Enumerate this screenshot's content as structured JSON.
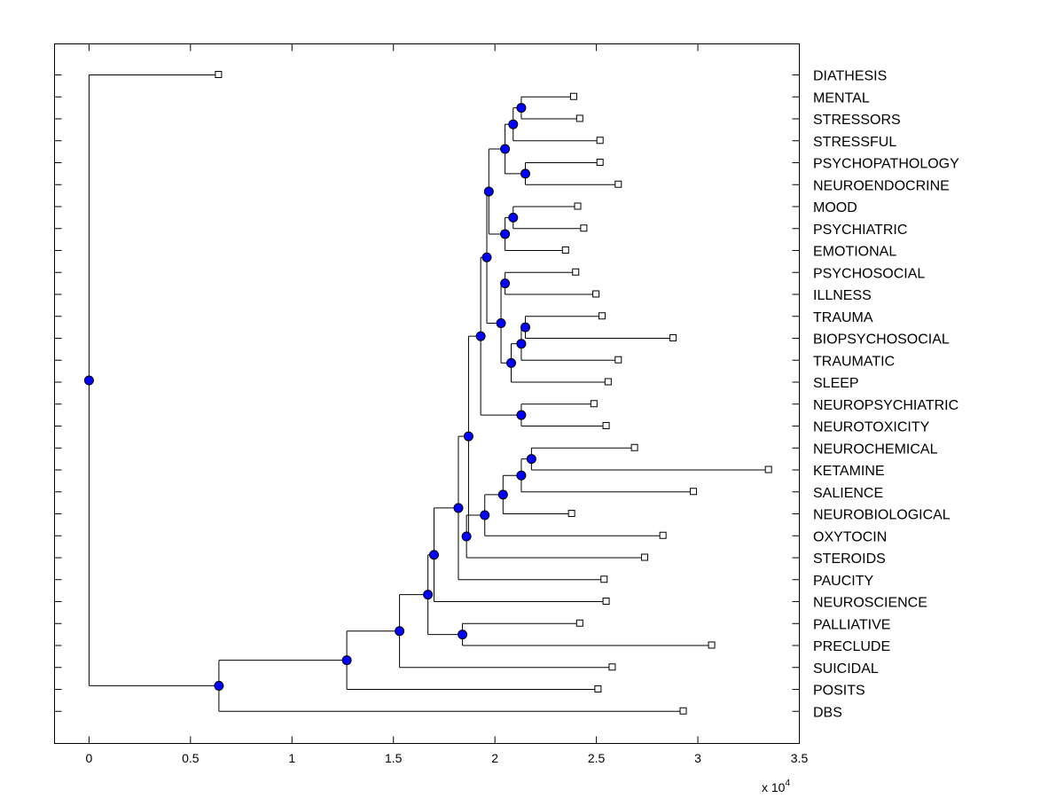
{
  "chart_data": {
    "type": "dendrogram",
    "title": "",
    "xlabel": "",
    "ylabel": "",
    "x_multiplier_label": "x 10",
    "x_multiplier_exponent": "4",
    "x_scale": 10000,
    "xlim": [
      -0.17,
      3.5
    ],
    "x_ticks": [
      0,
      0.5,
      1,
      1.5,
      2,
      2.5,
      3,
      3.5
    ],
    "x_tick_labels": [
      "0",
      "0.5",
      "1",
      "1.5",
      "2",
      "2.5",
      "3",
      "3.5"
    ],
    "grid": false,
    "node_color": "#0000ff",
    "line_color": "#000000",
    "leaves": [
      {
        "label": "DIATHESIS",
        "x": 0.64
      },
      {
        "label": "MENTAL",
        "x": 2.39
      },
      {
        "label": "STRESSORS",
        "x": 2.42
      },
      {
        "label": "STRESSFUL",
        "x": 2.52
      },
      {
        "label": "PSYCHOPATHOLOGY",
        "x": 2.52
      },
      {
        "label": "NEUROENDOCRINE",
        "x": 2.61
      },
      {
        "label": "MOOD",
        "x": 2.41
      },
      {
        "label": "PSYCHIATRIC",
        "x": 2.44
      },
      {
        "label": "EMOTIONAL",
        "x": 2.35
      },
      {
        "label": "PSYCHOSOCIAL",
        "x": 2.4
      },
      {
        "label": "ILLNESS",
        "x": 2.5
      },
      {
        "label": "TRAUMA",
        "x": 2.53
      },
      {
        "label": "BIOPSYCHOSOCIAL",
        "x": 2.88
      },
      {
        "label": "TRAUMATIC",
        "x": 2.61
      },
      {
        "label": "SLEEP",
        "x": 2.56
      },
      {
        "label": "NEUROPSYCHIATRIC",
        "x": 2.49
      },
      {
        "label": "NEUROTOXICITY",
        "x": 2.55
      },
      {
        "label": "NEUROCHEMICAL",
        "x": 2.69
      },
      {
        "label": "KETAMINE",
        "x": 3.35
      },
      {
        "label": "SALIENCE",
        "x": 2.98
      },
      {
        "label": "NEUROBIOLOGICAL",
        "x": 2.38
      },
      {
        "label": "OXYTOCIN",
        "x": 2.83
      },
      {
        "label": "STEROIDS",
        "x": 2.74
      },
      {
        "label": "PAUCITY",
        "x": 2.54
      },
      {
        "label": "NEUROSCIENCE",
        "x": 2.55
      },
      {
        "label": "PALLIATIVE",
        "x": 2.42
      },
      {
        "label": "PRECLUDE",
        "x": 3.07
      },
      {
        "label": "SUICIDAL",
        "x": 2.58
      },
      {
        "label": "POSITS",
        "x": 2.51
      },
      {
        "label": "DBS",
        "x": 2.93
      }
    ],
    "internal_nodes": [
      {
        "id": "n1",
        "x": 2.13,
        "children": [
          "L1",
          "L2"
        ]
      },
      {
        "id": "n2",
        "x": 2.09,
        "children": [
          "n1",
          "L3"
        ]
      },
      {
        "id": "n3",
        "x": 2.15,
        "children": [
          "L4",
          "L5"
        ]
      },
      {
        "id": "n4",
        "x": 2.05,
        "children": [
          "n2",
          "n3"
        ]
      },
      {
        "id": "n5",
        "x": 2.09,
        "children": [
          "L6",
          "L7"
        ]
      },
      {
        "id": "n6",
        "x": 2.05,
        "children": [
          "n5",
          "L8"
        ]
      },
      {
        "id": "n7",
        "x": 1.97,
        "children": [
          "n4",
          "n6"
        ]
      },
      {
        "id": "n8",
        "x": 2.05,
        "children": [
          "L9",
          "L10"
        ]
      },
      {
        "id": "n9",
        "x": 2.15,
        "children": [
          "L11",
          "L12"
        ]
      },
      {
        "id": "n10",
        "x": 2.13,
        "children": [
          "n9",
          "L13"
        ]
      },
      {
        "id": "n11",
        "x": 2.08,
        "children": [
          "n10",
          "L14"
        ]
      },
      {
        "id": "n12",
        "x": 2.03,
        "children": [
          "n8",
          "n11"
        ]
      },
      {
        "id": "n13",
        "x": 1.96,
        "children": [
          "n7",
          "n12"
        ]
      },
      {
        "id": "n14",
        "x": 2.13,
        "children": [
          "L15",
          "L16"
        ]
      },
      {
        "id": "n15",
        "x": 1.93,
        "children": [
          "n13",
          "n14"
        ]
      },
      {
        "id": "n16",
        "x": 2.18,
        "children": [
          "L17",
          "L18"
        ]
      },
      {
        "id": "n17",
        "x": 2.13,
        "children": [
          "n16",
          "L19"
        ]
      },
      {
        "id": "n18",
        "x": 2.04,
        "children": [
          "n17",
          "L20"
        ]
      },
      {
        "id": "n19",
        "x": 1.95,
        "children": [
          "n18",
          "L21"
        ]
      },
      {
        "id": "n20",
        "x": 1.86,
        "children": [
          "n19",
          "L22"
        ]
      },
      {
        "id": "n21",
        "x": 1.87,
        "children": [
          "n15",
          "n20"
        ]
      },
      {
        "id": "n22",
        "x": 1.82,
        "children": [
          "n21",
          "L23"
        ]
      },
      {
        "id": "n23",
        "x": 1.7,
        "children": [
          "n22",
          "L24"
        ]
      },
      {
        "id": "n24",
        "x": 1.84,
        "children": [
          "L25",
          "L26"
        ]
      },
      {
        "id": "n25",
        "x": 1.67,
        "children": [
          "n23",
          "n24"
        ]
      },
      {
        "id": "n26",
        "x": 1.53,
        "children": [
          "n25",
          "L27"
        ]
      },
      {
        "id": "n27",
        "x": 1.27,
        "children": [
          "n26",
          "L28"
        ]
      },
      {
        "id": "n28",
        "x": 0.64,
        "children": [
          "n27",
          "L29"
        ]
      },
      {
        "id": "n29",
        "x": 0.0,
        "children": [
          "L0",
          "n28"
        ]
      }
    ]
  }
}
